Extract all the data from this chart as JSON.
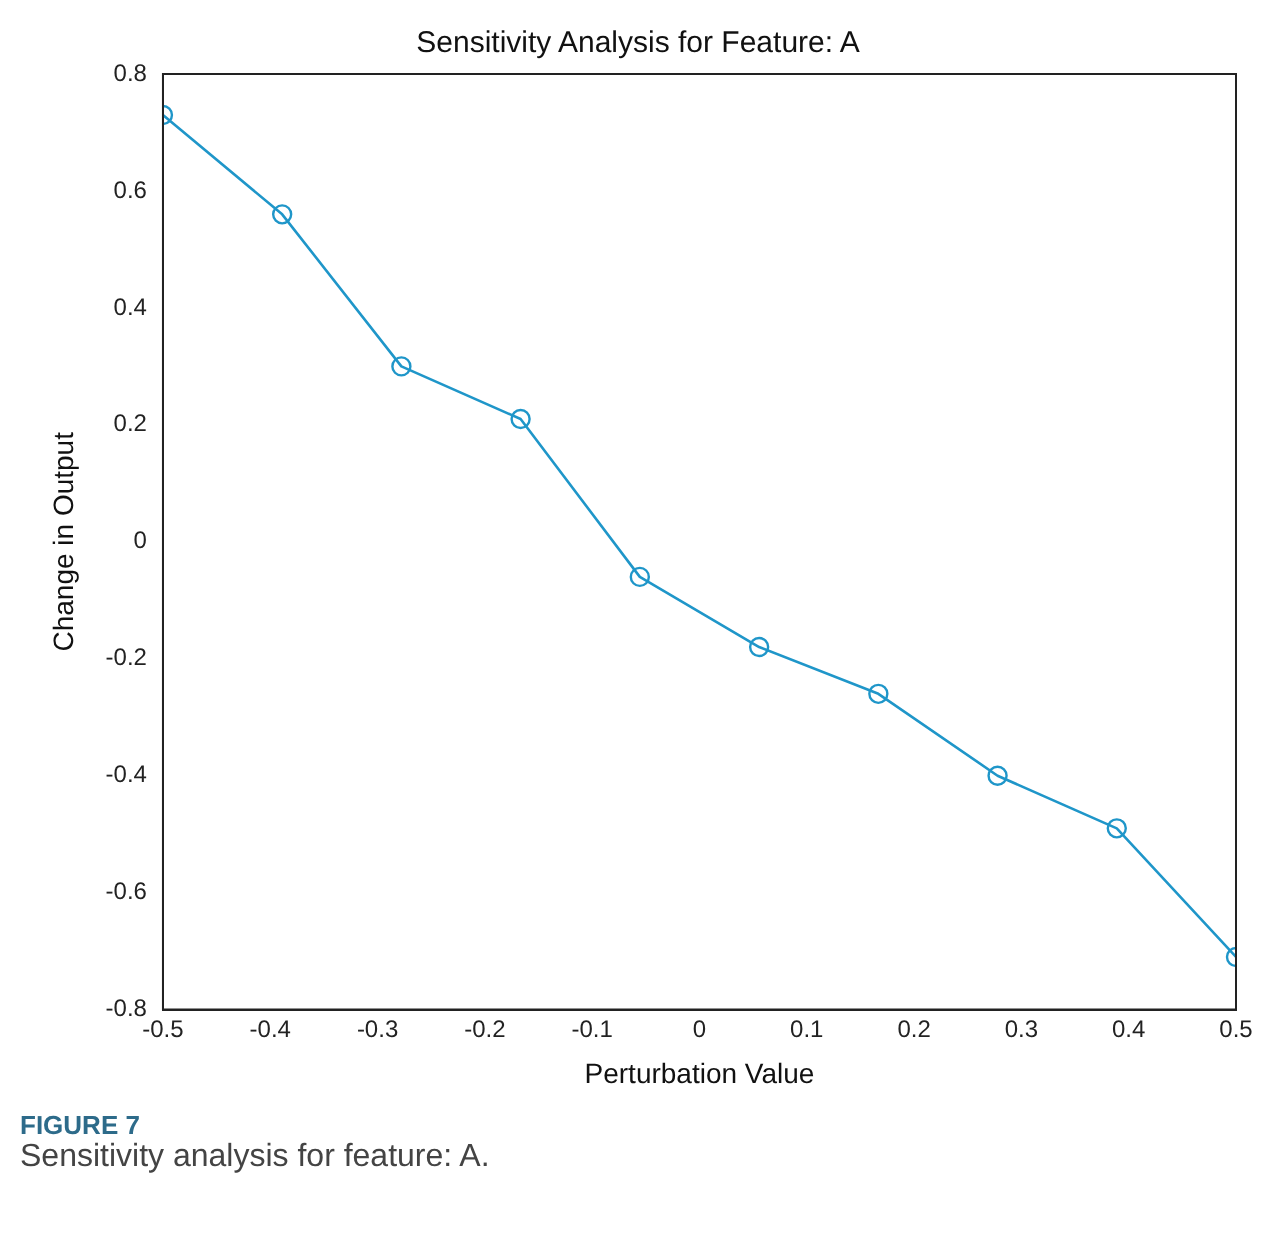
{
  "chart_data": {
    "type": "line",
    "title": "Sensitivity Analysis for Feature: A",
    "xlabel": "Perturbation Value",
    "ylabel": "Change in Output",
    "x": [
      -0.5,
      -0.3889,
      -0.2778,
      -0.1667,
      -0.0556,
      0.0556,
      0.1667,
      0.2778,
      0.3889,
      0.5
    ],
    "series": [
      {
        "color": "#1f96c9",
        "values": [
          0.73,
          0.56,
          0.3,
          0.21,
          -0.06,
          -0.18,
          -0.26,
          -0.4,
          -0.49,
          -0.71
        ]
      }
    ],
    "xlim": [
      -0.5,
      0.5
    ],
    "xticks": [
      -0.5,
      -0.4,
      -0.3,
      -0.2,
      -0.1,
      0,
      0.1,
      0.2,
      0.3,
      0.4,
      0.5
    ],
    "ylim": [
      -0.8,
      0.8
    ],
    "yticks": [
      -0.8,
      -0.6,
      -0.4,
      -0.2,
      0,
      0.2,
      0.4,
      0.6,
      0.8
    ],
    "grid": false,
    "legend": false,
    "marker": "circle",
    "line_style": "solid",
    "annotations": [
      "FIGURE 7",
      "Sensitivity analysis for feature: A."
    ]
  }
}
